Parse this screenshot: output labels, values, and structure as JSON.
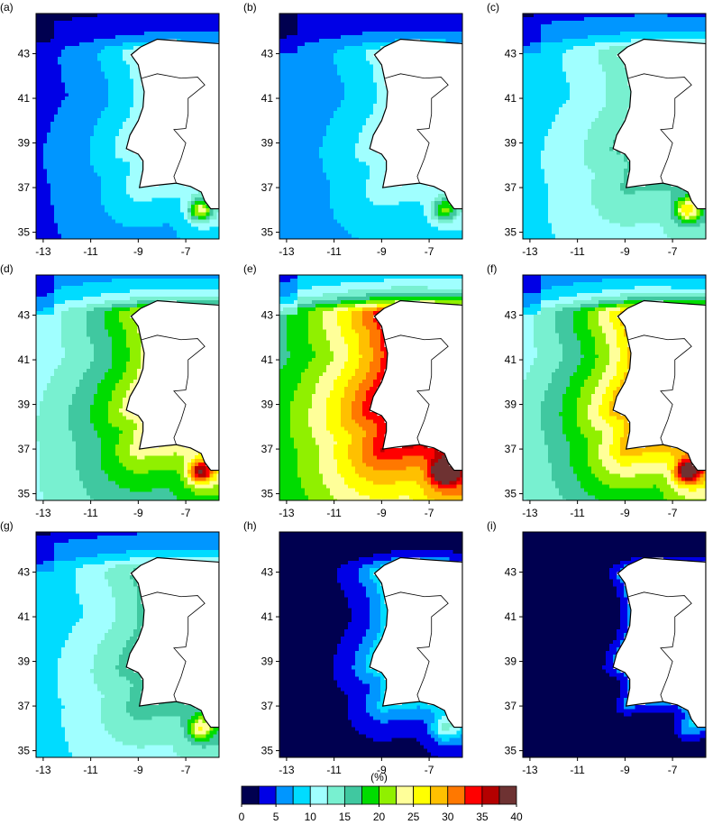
{
  "panels": [
    "(a)",
    "(b)",
    "(c)",
    "(d)",
    "(e)",
    "(f)",
    "(g)",
    "(h)",
    "(i)"
  ],
  "map": {
    "xlim": [
      -13.3,
      -5.6
    ],
    "ylim": [
      34.7,
      44.8
    ],
    "xticks": [
      -13,
      -11,
      -9,
      -7
    ],
    "yticks": [
      35,
      37,
      39,
      41,
      43
    ]
  },
  "colorbar": {
    "label": "(%)",
    "lim": [
      0,
      40
    ],
    "ticks": [
      0,
      5,
      10,
      15,
      20,
      25,
      30,
      35,
      40
    ],
    "colors": [
      "#000050",
      "#0000e6",
      "#0096ff",
      "#00dcff",
      "#a0ffff",
      "#78f0d0",
      "#40c8a0",
      "#00dc00",
      "#90f000",
      "#ffff99",
      "#ffff00",
      "#ffc000",
      "#ff7800",
      "#ff0000",
      "#b40000",
      "#6e3232"
    ]
  }
}
